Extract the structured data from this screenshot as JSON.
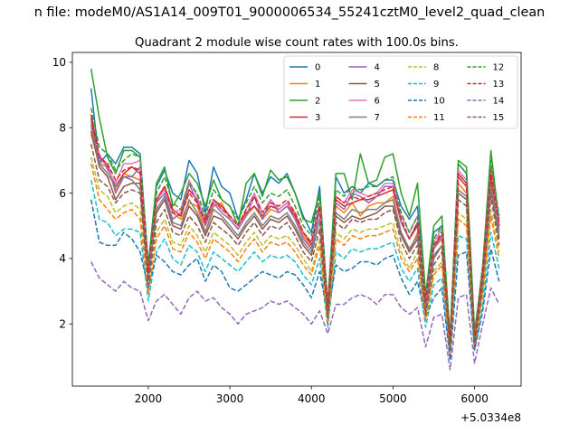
{
  "figure": {
    "suptitle": "n file: modeM0/AS1A14_009T01_9000006534_55241cztM0_level2_quad_clean",
    "title": "Quadrant 2 module wise count rates with 100.0s bins."
  },
  "chart_data": {
    "type": "line",
    "title": "Quadrant 2 module wise count rates with 100.0s bins.",
    "xlabel": "",
    "ylabel": "",
    "x_offset_label": "+5.0334e8",
    "xlim": [
      1070,
      6570
    ],
    "ylim": [
      0.1,
      10.3
    ],
    "x_ticks": [
      2000,
      3000,
      4000,
      5000,
      6000
    ],
    "x_tick_labels": [
      "2000",
      "3000",
      "4000",
      "5000",
      "6000"
    ],
    "y_ticks": [
      2,
      4,
      6,
      8,
      10
    ],
    "y_tick_labels": [
      "2",
      "4",
      "6",
      "8",
      "10"
    ],
    "grid": false,
    "legend": {
      "placement": "top-right",
      "columns": 4
    },
    "x": [
      1300,
      1400,
      1500,
      1600,
      1700,
      1800,
      1900,
      2000,
      2100,
      2200,
      2300,
      2400,
      2500,
      2600,
      2700,
      2800,
      2900,
      3000,
      3100,
      3200,
      3300,
      3400,
      3500,
      3600,
      3700,
      3800,
      3900,
      4000,
      4100,
      4200,
      4300,
      4400,
      4500,
      4600,
      4700,
      4800,
      4900,
      5000,
      5100,
      5200,
      5300,
      5400,
      5500,
      5600,
      5700,
      5800,
      5900,
      6000,
      6100,
      6200,
      6300
    ],
    "series": [
      {
        "name": "0",
        "color": "#1f77b4",
        "dash": "solid",
        "values": [
          9.2,
          6.9,
          7.2,
          6.9,
          7.4,
          7.4,
          7.2,
          3.8,
          6.2,
          6.7,
          6.0,
          5.8,
          7.0,
          6.6,
          5.4,
          6.8,
          6.2,
          6.0,
          5.2,
          5.8,
          6.6,
          6.0,
          6.5,
          6.3,
          6.6,
          6.0,
          5.3,
          4.8,
          6.2,
          2.5,
          6.5,
          6.0,
          6.2,
          6.0,
          6.3,
          6.2,
          6.4,
          6.4,
          5.6,
          5.2,
          5.6,
          2.7,
          4.8,
          5.0,
          1.6,
          6.9,
          6.6,
          1.8,
          3.5,
          6.8,
          5.2
        ]
      },
      {
        "name": "1",
        "color": "#ff7f0e",
        "dash": "solid",
        "values": [
          7.8,
          6.9,
          6.8,
          6.1,
          6.6,
          6.5,
          6.4,
          3.6,
          5.7,
          6.2,
          5.4,
          5.2,
          5.7,
          5.6,
          4.8,
          5.6,
          5.7,
          5.2,
          4.9,
          5.3,
          5.6,
          5.2,
          5.5,
          5.4,
          5.6,
          5.3,
          4.7,
          4.3,
          5.5,
          2.6,
          5.6,
          5.4,
          5.7,
          5.3,
          5.6,
          5.7,
          5.7,
          5.9,
          4.8,
          4.2,
          4.8,
          2.5,
          4.3,
          4.6,
          1.4,
          6.3,
          6.0,
          1.4,
          3.7,
          6.3,
          4.8
        ]
      },
      {
        "name": "2",
        "color": "#2ca02c",
        "dash": "solid",
        "values": [
          9.8,
          8.3,
          7.1,
          6.6,
          7.3,
          7.3,
          7.1,
          3.8,
          6.3,
          6.8,
          5.6,
          6.0,
          6.6,
          6.3,
          5.6,
          6.4,
          5.8,
          5.6,
          5.0,
          6.3,
          6.6,
          5.9,
          6.7,
          6.4,
          6.5,
          6.0,
          5.2,
          5.1,
          6.0,
          2.6,
          6.6,
          6.6,
          5.8,
          7.2,
          6.3,
          6.4,
          7.1,
          7.2,
          6.0,
          5.3,
          6.3,
          2.9,
          5.0,
          5.3,
          1.6,
          7.0,
          6.8,
          1.7,
          3.8,
          7.3,
          5.1
        ]
      },
      {
        "name": "3",
        "color": "#d62728",
        "dash": "solid",
        "values": [
          8.4,
          7.1,
          6.8,
          6.2,
          6.6,
          6.8,
          6.6,
          3.6,
          5.8,
          6.2,
          5.5,
          5.3,
          6.1,
          5.8,
          5.2,
          5.8,
          5.6,
          5.3,
          5.0,
          5.4,
          5.6,
          5.3,
          5.6,
          5.5,
          5.7,
          5.3,
          4.8,
          4.4,
          5.6,
          2.5,
          5.8,
          5.6,
          5.7,
          5.8,
          5.8,
          5.9,
          6.0,
          6.1,
          5.1,
          4.6,
          5.0,
          2.6,
          4.4,
          4.7,
          1.4,
          6.5,
          6.2,
          1.5,
          3.6,
          6.5,
          5.0
        ]
      },
      {
        "name": "4",
        "color": "#9467bd",
        "dash": "solid",
        "values": [
          8.2,
          7.0,
          6.9,
          6.0,
          6.5,
          6.5,
          6.8,
          3.5,
          5.7,
          6.0,
          5.2,
          5.4,
          6.3,
          5.7,
          5.0,
          5.7,
          5.4,
          5.2,
          4.9,
          5.3,
          5.9,
          5.2,
          5.8,
          5.4,
          5.6,
          5.2,
          4.6,
          4.3,
          5.5,
          2.4,
          5.7,
          5.5,
          6.0,
          5.9,
          5.7,
          5.9,
          6.2,
          6.2,
          5.1,
          4.6,
          5.1,
          2.6,
          4.3,
          4.7,
          1.3,
          6.6,
          6.3,
          1.5,
          3.6,
          6.7,
          4.9
        ]
      },
      {
        "name": "5",
        "color": "#8c564b",
        "dash": "solid",
        "values": [
          7.9,
          6.8,
          6.5,
          5.8,
          6.2,
          6.3,
          6.3,
          3.4,
          5.4,
          5.8,
          5.0,
          4.9,
          5.6,
          5.3,
          4.7,
          5.3,
          5.2,
          4.9,
          4.6,
          5.0,
          5.3,
          4.9,
          5.2,
          5.1,
          5.3,
          4.9,
          4.4,
          4.1,
          5.2,
          2.3,
          5.3,
          5.1,
          5.3,
          5.2,
          5.3,
          5.4,
          5.6,
          5.6,
          4.7,
          4.2,
          4.6,
          2.4,
          4.0,
          4.4,
          1.3,
          6.0,
          5.8,
          1.4,
          3.3,
          6.1,
          4.6
        ]
      },
      {
        "name": "6",
        "color": "#e377c2",
        "dash": "solid",
        "values": [
          8.0,
          7.2,
          6.7,
          6.3,
          6.9,
          6.9,
          7.0,
          3.7,
          5.8,
          6.1,
          5.4,
          5.5,
          6.4,
          5.9,
          5.1,
          5.8,
          5.5,
          5.3,
          5.0,
          5.5,
          6.0,
          5.4,
          5.8,
          5.5,
          5.7,
          5.4,
          4.8,
          4.5,
          5.7,
          2.5,
          5.9,
          5.7,
          6.1,
          6.0,
          5.9,
          6.0,
          6.3,
          6.3,
          5.3,
          4.8,
          5.3,
          2.7,
          4.5,
          4.9,
          1.4,
          6.7,
          6.4,
          1.6,
          3.8,
          6.8,
          5.1
        ]
      },
      {
        "name": "7",
        "color": "#7f7f7f",
        "dash": "solid",
        "values": [
          8.1,
          6.9,
          6.6,
          6.2,
          6.5,
          6.4,
          6.1,
          3.3,
          5.5,
          5.9,
          5.1,
          5.0,
          5.8,
          5.4,
          4.8,
          5.5,
          5.3,
          5.0,
          4.7,
          5.1,
          5.4,
          5.0,
          5.3,
          5.2,
          5.4,
          5.0,
          4.5,
          4.2,
          5.2,
          2.3,
          5.4,
          5.2,
          5.5,
          5.4,
          5.5,
          5.5,
          5.7,
          5.8,
          4.8,
          4.3,
          4.7,
          2.4,
          4.1,
          4.4,
          1.3,
          6.1,
          5.9,
          1.4,
          3.4,
          6.2,
          4.7
        ]
      },
      {
        "name": "8",
        "color": "#bcbd22",
        "dash": "dashed",
        "values": [
          7.1,
          6.1,
          5.9,
          5.4,
          5.6,
          5.7,
          5.5,
          3.0,
          4.8,
          5.2,
          4.5,
          4.4,
          5.0,
          4.7,
          4.2,
          4.8,
          4.6,
          4.4,
          4.1,
          4.5,
          4.8,
          4.4,
          4.7,
          4.6,
          4.7,
          4.4,
          4.0,
          3.6,
          4.6,
          2.1,
          4.8,
          4.6,
          4.9,
          4.8,
          4.9,
          4.9,
          5.0,
          5.1,
          4.2,
          3.7,
          4.2,
          2.2,
          3.6,
          3.9,
          1.2,
          5.4,
          5.2,
          1.3,
          3.0,
          5.5,
          4.2
        ]
      },
      {
        "name": "9",
        "color": "#17becf",
        "dash": "dashed",
        "values": [
          6.4,
          5.2,
          5.1,
          4.7,
          4.9,
          4.9,
          4.8,
          2.7,
          4.2,
          4.6,
          4.0,
          3.8,
          4.4,
          4.2,
          3.6,
          4.2,
          4.0,
          3.8,
          3.6,
          3.9,
          4.2,
          3.9,
          4.1,
          4.0,
          4.1,
          3.9,
          3.5,
          3.2,
          4.0,
          1.9,
          4.2,
          4.0,
          4.3,
          4.2,
          4.3,
          4.3,
          4.4,
          4.5,
          3.7,
          3.3,
          3.7,
          1.9,
          3.2,
          3.4,
          1.0,
          4.7,
          4.6,
          1.2,
          2.6,
          4.8,
          3.7
        ]
      },
      {
        "name": "10",
        "color": "#1f77b4",
        "dash": "dashed",
        "values": [
          5.8,
          4.5,
          4.4,
          4.4,
          4.8,
          4.6,
          4.2,
          3.1,
          4.1,
          3.9,
          3.6,
          3.5,
          3.8,
          4.0,
          3.3,
          3.8,
          3.6,
          3.1,
          3.0,
          3.2,
          3.4,
          3.6,
          3.5,
          3.4,
          3.6,
          3.5,
          3.2,
          2.8,
          3.6,
          2.3,
          3.8,
          3.6,
          3.7,
          3.9,
          3.9,
          3.8,
          4.0,
          4.1,
          3.4,
          2.9,
          3.3,
          2.2,
          2.8,
          3.1,
          0.9,
          4.1,
          4.2,
          1.2,
          2.4,
          4.3,
          3.3
        ]
      },
      {
        "name": "11",
        "color": "#ff7f0e",
        "dash": "dashed",
        "values": [
          6.9,
          5.8,
          5.5,
          5.2,
          5.4,
          5.5,
          5.2,
          2.9,
          4.6,
          5.0,
          4.3,
          4.2,
          4.8,
          4.5,
          4.0,
          4.6,
          4.4,
          4.2,
          3.9,
          4.3,
          4.6,
          4.2,
          4.5,
          4.4,
          4.5,
          4.2,
          3.8,
          3.5,
          4.4,
          2.0,
          4.6,
          4.4,
          4.7,
          4.6,
          4.7,
          4.7,
          4.8,
          4.9,
          4.0,
          3.6,
          4.0,
          2.1,
          3.5,
          3.8,
          1.1,
          5.2,
          5.0,
          1.3,
          2.9,
          5.3,
          4.0
        ]
      },
      {
        "name": "12",
        "color": "#2ca02c",
        "dash": "dashed",
        "values": [
          8.6,
          7.4,
          7.2,
          6.7,
          7.0,
          7.2,
          7.1,
          3.8,
          6.0,
          6.5,
          5.7,
          5.5,
          6.3,
          6.0,
          5.3,
          6.1,
          5.8,
          5.6,
          5.2,
          5.7,
          6.2,
          5.7,
          6.0,
          5.9,
          6.1,
          5.6,
          5.0,
          4.7,
          5.9,
          2.6,
          6.1,
          5.9,
          6.2,
          6.1,
          6.2,
          6.2,
          6.4,
          6.5,
          5.4,
          4.8,
          5.3,
          2.8,
          4.6,
          5.0,
          1.5,
          6.9,
          6.6,
          1.6,
          3.8,
          7.0,
          5.3
        ]
      },
      {
        "name": "13",
        "color": "#d62728",
        "dash": "dashed",
        "values": [
          8.3,
          7.1,
          6.9,
          6.4,
          6.7,
          6.8,
          6.7,
          3.6,
          5.8,
          6.2,
          5.4,
          5.3,
          6.0,
          5.7,
          5.1,
          5.8,
          5.5,
          5.3,
          5.0,
          5.5,
          5.9,
          5.4,
          5.7,
          5.6,
          5.8,
          5.4,
          4.8,
          4.5,
          5.6,
          2.5,
          5.9,
          5.7,
          5.9,
          5.8,
          5.9,
          6.0,
          6.1,
          6.2,
          5.2,
          4.6,
          5.1,
          2.7,
          4.4,
          4.8,
          1.4,
          6.6,
          6.3,
          1.5,
          3.6,
          6.7,
          5.0
        ]
      },
      {
        "name": "14",
        "color": "#9467bd",
        "dash": "dashed",
        "values": [
          3.9,
          3.4,
          3.2,
          3.0,
          3.3,
          3.1,
          3.0,
          2.1,
          2.7,
          2.9,
          2.6,
          2.3,
          2.8,
          3.0,
          2.7,
          2.8,
          2.5,
          2.3,
          2.0,
          2.3,
          2.4,
          2.5,
          2.7,
          2.6,
          2.7,
          2.5,
          2.3,
          2.0,
          2.4,
          1.7,
          2.6,
          2.6,
          2.8,
          2.9,
          2.8,
          2.6,
          2.9,
          2.9,
          2.5,
          2.3,
          2.5,
          1.3,
          2.2,
          2.3,
          0.6,
          2.8,
          2.9,
          0.8,
          2.0,
          3.1,
          2.6
        ]
      },
      {
        "name": "15",
        "color": "#8c564b",
        "dash": "dashed",
        "values": [
          7.5,
          6.4,
          6.2,
          5.7,
          6.0,
          6.1,
          6.0,
          3.2,
          5.1,
          5.5,
          4.8,
          4.7,
          5.3,
          5.0,
          4.5,
          5.1,
          4.9,
          4.7,
          4.4,
          4.8,
          5.1,
          4.7,
          5.0,
          4.9,
          5.1,
          4.7,
          4.2,
          3.9,
          4.9,
          2.2,
          5.1,
          4.9,
          5.2,
          5.1,
          5.2,
          5.2,
          5.4,
          5.5,
          4.5,
          4.0,
          4.4,
          2.3,
          3.8,
          4.2,
          1.2,
          5.8,
          5.6,
          1.3,
          3.2,
          5.9,
          4.4
        ]
      }
    ]
  }
}
